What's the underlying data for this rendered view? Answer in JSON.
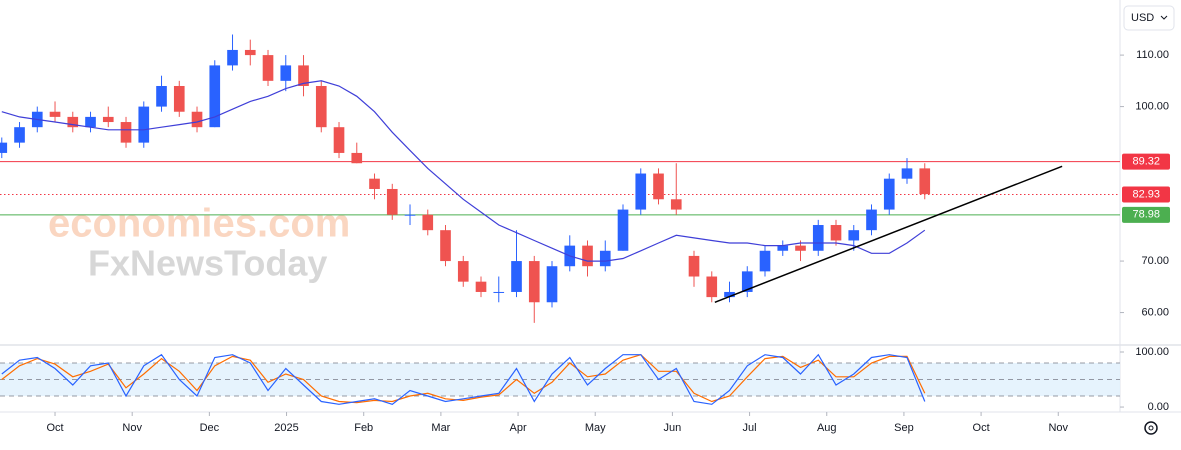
{
  "chart_data": {
    "type": "candlestick",
    "currency": "USD",
    "watermark": [
      "economies.com",
      "FxNewsToday"
    ],
    "xlim": [
      -0.713,
      13.8
    ],
    "xticks": [
      {
        "value": 0,
        "label": "Oct"
      },
      {
        "value": 1,
        "label": "Nov"
      },
      {
        "value": 2,
        "label": "Dec"
      },
      {
        "value": 3,
        "label": "2025"
      },
      {
        "value": 4,
        "label": "Feb"
      },
      {
        "value": 5,
        "label": "Mar"
      },
      {
        "value": 6,
        "label": "Apr"
      },
      {
        "value": 7,
        "label": "May"
      },
      {
        "value": 8,
        "label": "Jun"
      },
      {
        "value": 9,
        "label": "Jul"
      },
      {
        "value": 10,
        "label": "Aug"
      },
      {
        "value": 11,
        "label": "Sep"
      },
      {
        "value": 12,
        "label": "Oct"
      },
      {
        "value": 13,
        "label": "Nov"
      }
    ],
    "ylim": [
      53.7,
      120.7
    ],
    "yticks": [
      {
        "value": 60,
        "label": "60.00"
      },
      {
        "value": 70,
        "label": "70.00"
      },
      {
        "value": 100,
        "label": "100.00"
      },
      {
        "value": 110,
        "label": "110.00"
      }
    ],
    "up_color": "#2962ff",
    "down_color": "#ef5350",
    "x": [
      -0.69,
      -0.46,
      -0.23,
      0,
      0.23,
      0.46,
      0.69,
      0.92,
      1.15,
      1.38,
      1.61,
      1.84,
      2.07,
      2.3,
      2.53,
      2.76,
      2.99,
      3.22,
      3.45,
      3.68,
      3.91,
      4.14,
      4.37,
      4.6,
      4.83,
      5.06,
      5.29,
      5.52,
      5.75,
      5.98,
      6.21,
      6.44,
      6.67,
      6.9,
      7.13,
      7.36,
      7.59,
      7.82,
      8.05,
      8.28,
      8.51,
      8.74,
      8.97,
      9.2,
      9.43,
      9.66,
      9.89,
      10.12,
      10.35,
      10.58,
      10.81,
      11.04,
      11.27
    ],
    "ohlc": [
      [
        91,
        94,
        90,
        93
      ],
      [
        93,
        97,
        92,
        96
      ],
      [
        96,
        100,
        95,
        99
      ],
      [
        99,
        101,
        97,
        98
      ],
      [
        98,
        99,
        95,
        96
      ],
      [
        96,
        99,
        95,
        98
      ],
      [
        98,
        100,
        96,
        97
      ],
      [
        97,
        98,
        92,
        93
      ],
      [
        93,
        101,
        92,
        100
      ],
      [
        100,
        106,
        99,
        104
      ],
      [
        104,
        105,
        98,
        99
      ],
      [
        99,
        100,
        95,
        96
      ],
      [
        96,
        109,
        96,
        108
      ],
      [
        108,
        114,
        107,
        111
      ],
      [
        111,
        113,
        108,
        110
      ],
      [
        110,
        111,
        104,
        105
      ],
      [
        105,
        110,
        103,
        108
      ],
      [
        108,
        110,
        102,
        104
      ],
      [
        104,
        105,
        95,
        96
      ],
      [
        96,
        97,
        90,
        91
      ],
      [
        91,
        93,
        89,
        89
      ],
      [
        86,
        87,
        82,
        84
      ],
      [
        84,
        85,
        78,
        79
      ],
      [
        79,
        81,
        77,
        79
      ],
      [
        79,
        80,
        75,
        76
      ],
      [
        76,
        77,
        69,
        70
      ],
      [
        70,
        71,
        65,
        66
      ],
      [
        66,
        67,
        63,
        64
      ],
      [
        64,
        67,
        62,
        64
      ],
      [
        64,
        76,
        63,
        70
      ],
      [
        70,
        71,
        58,
        62
      ],
      [
        62,
        70,
        61,
        69
      ],
      [
        69,
        75,
        68,
        73
      ],
      [
        73,
        74,
        67,
        69
      ],
      [
        69,
        74,
        68,
        72
      ],
      [
        72,
        81,
        72,
        80
      ],
      [
        80,
        88,
        79,
        87
      ],
      [
        87,
        88,
        81,
        82
      ],
      [
        82,
        89,
        79,
        80
      ],
      [
        71,
        72,
        65,
        67
      ],
      [
        67,
        68,
        62,
        63
      ],
      [
        63,
        66,
        62,
        64
      ],
      [
        64,
        69,
        63,
        68
      ],
      [
        68,
        73,
        67,
        72
      ],
      [
        72,
        74,
        71,
        73
      ],
      [
        73,
        74,
        70,
        72
      ],
      [
        72,
        78,
        71,
        77
      ],
      [
        77,
        78,
        73,
        74
      ],
      [
        74,
        77,
        72,
        76
      ],
      [
        76,
        81,
        75,
        80
      ],
      [
        80,
        87,
        79,
        86
      ],
      [
        86,
        90,
        85,
        88
      ],
      [
        88,
        89,
        82,
        83
      ]
    ],
    "ma": {
      "color": "#3f3fd8",
      "values": [
        99,
        98,
        97.5,
        97,
        96.5,
        96,
        95.5,
        95.5,
        95.5,
        96,
        96.5,
        97,
        98,
        99.5,
        101,
        102,
        103.5,
        104.5,
        105,
        104,
        102,
        99,
        95,
        91.5,
        88,
        85,
        82,
        79.5,
        77,
        75.5,
        74,
        72.5,
        71,
        70,
        70,
        70.5,
        72,
        73.5,
        75,
        74.5,
        74,
        73.5,
        73.5,
        73,
        73,
        73.5,
        73.5,
        73.5,
        73,
        71.5,
        71.5,
        73.5,
        76
      ]
    },
    "hlines": [
      {
        "value": 89.32,
        "color": "#f23645",
        "style": "solid"
      },
      {
        "value": 82.93,
        "color": "#f23645",
        "style": "dotted"
      },
      {
        "value": 78.98,
        "color": "#4caf50",
        "style": "solid"
      }
    ],
    "trendline": {
      "color": "#000000",
      "x": [
        8.55,
        13.05
      ],
      "y": [
        62,
        88.4
      ]
    },
    "stochastic": {
      "ylim": [
        -9,
        112.7
      ],
      "yticks": [
        {
          "value": 0,
          "label": "0.00"
        },
        {
          "value": 100,
          "label": "100.00"
        }
      ],
      "levels": [
        20,
        50,
        80
      ],
      "k": {
        "color": "#2962ff",
        "values": [
          60,
          85,
          90,
          70,
          40,
          75,
          80,
          20,
          75,
          95,
          50,
          20,
          90,
          95,
          80,
          30,
          70,
          40,
          10,
          5,
          10,
          15,
          5,
          30,
          20,
          10,
          15,
          20,
          25,
          70,
          10,
          60,
          90,
          40,
          70,
          95,
          95,
          50,
          70,
          10,
          5,
          30,
          75,
          95,
          90,
          60,
          95,
          40,
          60,
          90,
          95,
          90,
          10
        ]
      },
      "d": {
        "color": "#ff6d00",
        "values": [
          50,
          75,
          88,
          78,
          55,
          65,
          78,
          35,
          60,
          88,
          65,
          30,
          75,
          92,
          85,
          45,
          60,
          50,
          20,
          10,
          8,
          12,
          10,
          20,
          25,
          15,
          12,
          18,
          22,
          50,
          25,
          45,
          80,
          55,
          60,
          85,
          95,
          65,
          65,
          25,
          10,
          20,
          55,
          88,
          92,
          72,
          85,
          55,
          55,
          80,
          92,
          92,
          25
        ]
      }
    }
  }
}
